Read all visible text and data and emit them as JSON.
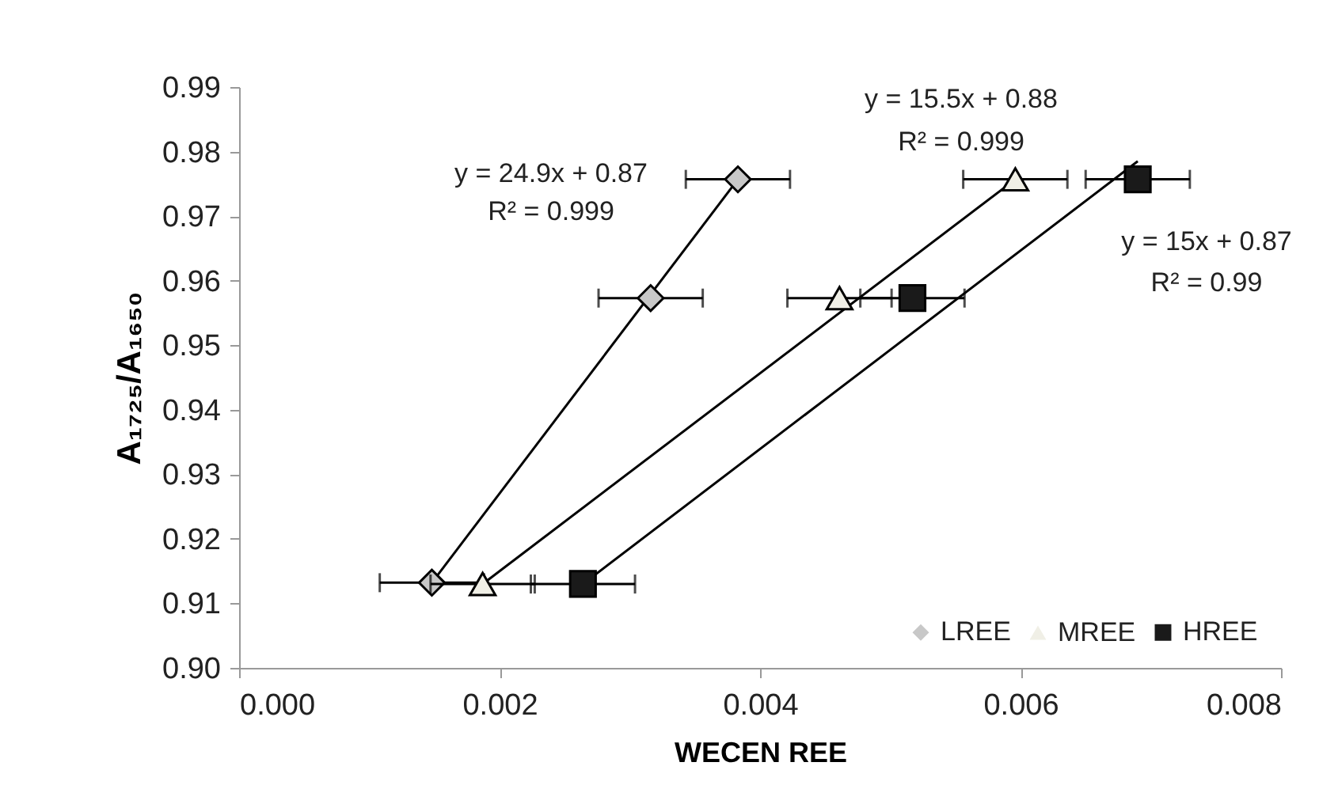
{
  "chart_data": {
    "type": "scatter",
    "xlabel": "WECEN REE",
    "ylabel": "A₁₇₂₅/A₁₆₅₀",
    "xlim": [
      0,
      0.008
    ],
    "xticks": [
      {
        "value": 0,
        "label": "0.000"
      },
      {
        "value": 0.002,
        "label": "0.002"
      },
      {
        "value": 0.004,
        "label": "0.004"
      },
      {
        "value": 0.006,
        "label": "0.006"
      },
      {
        "value": 0.008,
        "label": "0.008"
      }
    ],
    "ylim": [
      0.9,
      0.99
    ],
    "yticks": [
      {
        "value": 0.9,
        "label": "0.90"
      },
      0.91,
      0.92,
      0.93,
      0.94,
      0.95,
      0.96,
      0.97,
      0.98,
      0.99
    ],
    "grid": false,
    "legend": "bottom right",
    "series": [
      {
        "type": "line",
        "color": "#000000",
        "x": [
          0.00148,
          0.00383
        ],
        "values": [
          0.9132,
          0.9757
        ]
      },
      {
        "type": "line",
        "color": "#000000",
        "x": [
          0.00187,
          0.00596
        ],
        "values": [
          0.913,
          0.9757
        ]
      },
      {
        "type": "line",
        "color": "#000000",
        "x": [
          0.00264,
          0.0069
        ],
        "values": [
          0.913,
          0.9785
        ]
      },
      {
        "name": "LREE",
        "color": "#c8c8c8",
        "marker": "diamond",
        "x": [
          0.00148,
          0.00316,
          0.00383
        ],
        "values": [
          0.9132,
          0.9573,
          0.9757
        ],
        "xerrors": [
          0.0004,
          0.0004,
          0.0004
        ]
      },
      {
        "name": "MREE",
        "color": "#f0efe6",
        "marker": "triangle",
        "x": [
          0.00187,
          0.00461,
          0.00596
        ],
        "values": [
          0.913,
          0.9573,
          0.9757
        ],
        "xerrors": [
          0.0004,
          0.0004,
          0.0004
        ]
      },
      {
        "name": "HREE",
        "color": "#1a1a1a",
        "marker": "square",
        "x": [
          0.00264,
          0.00517,
          0.0069
        ],
        "values": [
          0.913,
          0.9573,
          0.9757
        ],
        "xerrors": [
          0.0004,
          0.0004,
          0.0004
        ]
      }
    ],
    "annotations": [
      "y = 24.9x + 0.87",
      "R² = 0.999",
      "y = 15.5x + 0.88",
      "R² = 0.999",
      "y = 15x + 0.87",
      "R² = 0.99"
    ]
  }
}
